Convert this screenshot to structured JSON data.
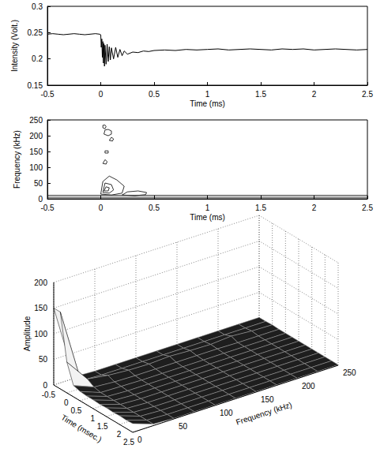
{
  "chart_data": [
    {
      "type": "line",
      "x_label": "Time (ms)",
      "y_label": "Intensity (Volt.)",
      "x": [
        -0.5,
        -0.45,
        -0.4,
        -0.35,
        -0.3,
        -0.25,
        -0.2,
        -0.15,
        -0.1,
        -0.05,
        -0.01,
        0,
        0.005,
        0.01,
        0.015,
        0.02,
        0.025,
        0.03,
        0.035,
        0.04,
        0.05,
        0.06,
        0.07,
        0.08,
        0.09,
        0.1,
        0.12,
        0.14,
        0.16,
        0.18,
        0.2,
        0.22,
        0.25,
        0.3,
        0.35,
        0.4,
        0.45,
        0.5,
        0.6,
        0.7,
        0.8,
        0.9,
        1,
        1.1,
        1.2,
        1.3,
        1.4,
        1.5,
        1.6,
        1.7,
        1.8,
        1.9,
        2,
        2.1,
        2.2,
        2.3,
        2.4,
        2.5
      ],
      "values": [
        0.247,
        0.248,
        0.247,
        0.246,
        0.247,
        0.248,
        0.247,
        0.246,
        0.247,
        0.248,
        0.247,
        0.246,
        0.222,
        0.238,
        0.203,
        0.233,
        0.192,
        0.229,
        0.186,
        0.226,
        0.19,
        0.228,
        0.195,
        0.223,
        0.198,
        0.221,
        0.2,
        0.222,
        0.203,
        0.218,
        0.206,
        0.215,
        0.209,
        0.213,
        0.212,
        0.215,
        0.214,
        0.216,
        0.217,
        0.216,
        0.218,
        0.217,
        0.218,
        0.219,
        0.217,
        0.218,
        0.219,
        0.218,
        0.217,
        0.219,
        0.218,
        0.219,
        0.217,
        0.218,
        0.219,
        0.218,
        0.217,
        0.218
      ],
      "color": "#000000",
      "xlim": [
        -0.5,
        2.5
      ],
      "xticks": [
        -0.5,
        0,
        0.5,
        1,
        1.5,
        2,
        2.5
      ],
      "ylim": [
        0.15,
        0.3
      ],
      "yticks": [
        0.15,
        0.2,
        0.25,
        0.3
      ],
      "grid": false
    },
    {
      "type": "contour",
      "x_label": "Time (ms)",
      "y_label": "Frequency (kHz)",
      "contours": [
        {
          "x": [
            0.02,
            0.04,
            0.05,
            0.04,
            0.02,
            0.02
          ],
          "y": [
            225,
            222,
            229,
            234,
            233,
            225
          ]
        },
        {
          "x": [
            0.03,
            0.07,
            0.1,
            0.1,
            0.07,
            0.04,
            0.03
          ],
          "y": [
            205,
            200,
            205,
            215,
            220,
            218,
            205
          ]
        },
        {
          "x": [
            0.08,
            0.11,
            0.12,
            0.1,
            0.08
          ],
          "y": [
            185,
            183,
            190,
            195,
            185
          ]
        },
        {
          "x": [
            0.04,
            0.07,
            0.07,
            0.04,
            0.04
          ],
          "y": [
            145,
            145,
            152,
            152,
            145
          ]
        },
        {
          "x": [
            0.02,
            0.05,
            0.06,
            0.04,
            0.02
          ],
          "y": [
            112,
            110,
            118,
            124,
            112
          ]
        },
        {
          "x": [
            0,
            0.1,
            0.2,
            0.22,
            0.15,
            0.08,
            0.02,
            0
          ],
          "y": [
            15,
            12,
            18,
            40,
            60,
            72,
            55,
            15
          ]
        },
        {
          "x": [
            0.02,
            0.08,
            0.12,
            0.1,
            0.04,
            0.02
          ],
          "y": [
            20,
            18,
            28,
            45,
            50,
            20
          ]
        },
        {
          "x": [
            0.03,
            0.07,
            0.08,
            0.05,
            0.03
          ],
          "y": [
            25,
            25,
            35,
            38,
            25
          ]
        },
        {
          "x": [
            0.2,
            0.32,
            0.42,
            0.43,
            0.35,
            0.25,
            0.2
          ],
          "y": [
            12,
            10,
            13,
            20,
            25,
            22,
            12
          ]
        },
        {
          "x": [
            -0.5,
            2.5
          ],
          "y": [
            11,
            11
          ]
        },
        {
          "x": [
            -0.5,
            2.5
          ],
          "y": [
            5,
            5
          ]
        }
      ],
      "color": "#000000",
      "xlim": [
        -0.5,
        2.5
      ],
      "xticks": [
        -0.5,
        0,
        0.5,
        1,
        1.5,
        2,
        2.5
      ],
      "ylim": [
        0,
        250
      ],
      "yticks": [
        0,
        50,
        100,
        150,
        200,
        250
      ],
      "grid": false
    },
    {
      "type": "surface",
      "x_label": "Time (msec.)",
      "y_label": "Frequency (kHz)",
      "z_label": "Amplitude",
      "x": [
        -0.5,
        -0.25,
        0,
        0.25,
        0.5,
        0.75,
        1,
        1.25,
        1.5,
        1.75,
        2,
        2.25,
        2.5
      ],
      "y": [
        0,
        25,
        50,
        75,
        100,
        125,
        150,
        175,
        200,
        225,
        250
      ],
      "z": [
        [
          150,
          3,
          1,
          1,
          1,
          1,
          1,
          1,
          1,
          1,
          1
        ],
        [
          150,
          3,
          1,
          1,
          1,
          1,
          1,
          1,
          1,
          1,
          1
        ],
        [
          60,
          14,
          8,
          5,
          4,
          6,
          4,
          3,
          6,
          3,
          2
        ],
        [
          22,
          6,
          3,
          2,
          2,
          2,
          2,
          2,
          1,
          1,
          1
        ],
        [
          18,
          3,
          2,
          1,
          1,
          1,
          1,
          1,
          1,
          1,
          1
        ],
        [
          17,
          3,
          1,
          1,
          1,
          1,
          1,
          1,
          1,
          1,
          1
        ],
        [
          17,
          3,
          1,
          1,
          1,
          1,
          1,
          1,
          1,
          1,
          1
        ],
        [
          16,
          3,
          1,
          1,
          1,
          1,
          1,
          1,
          1,
          1,
          1
        ],
        [
          17,
          3,
          1,
          1,
          1,
          1,
          1,
          1,
          1,
          1,
          1
        ],
        [
          16,
          3,
          1,
          1,
          1,
          1,
          1,
          1,
          1,
          1,
          1
        ],
        [
          17,
          3,
          1,
          1,
          1,
          1,
          1,
          1,
          1,
          1,
          1
        ],
        [
          16,
          3,
          1,
          1,
          1,
          1,
          1,
          1,
          1,
          1,
          1
        ],
        [
          17,
          3,
          1,
          1,
          1,
          1,
          1,
          1,
          1,
          1,
          1
        ]
      ],
      "xlim": [
        -0.5,
        2.5
      ],
      "xticks": [
        -0.5,
        0,
        0.5,
        1,
        1.5,
        2,
        2.5
      ],
      "ylim": [
        0,
        250
      ],
      "yticks": [
        0,
        50,
        100,
        150,
        200,
        250
      ],
      "zlim": [
        0,
        200
      ],
      "zticks": [
        0,
        50,
        100,
        150,
        200
      ],
      "grid": true
    }
  ]
}
